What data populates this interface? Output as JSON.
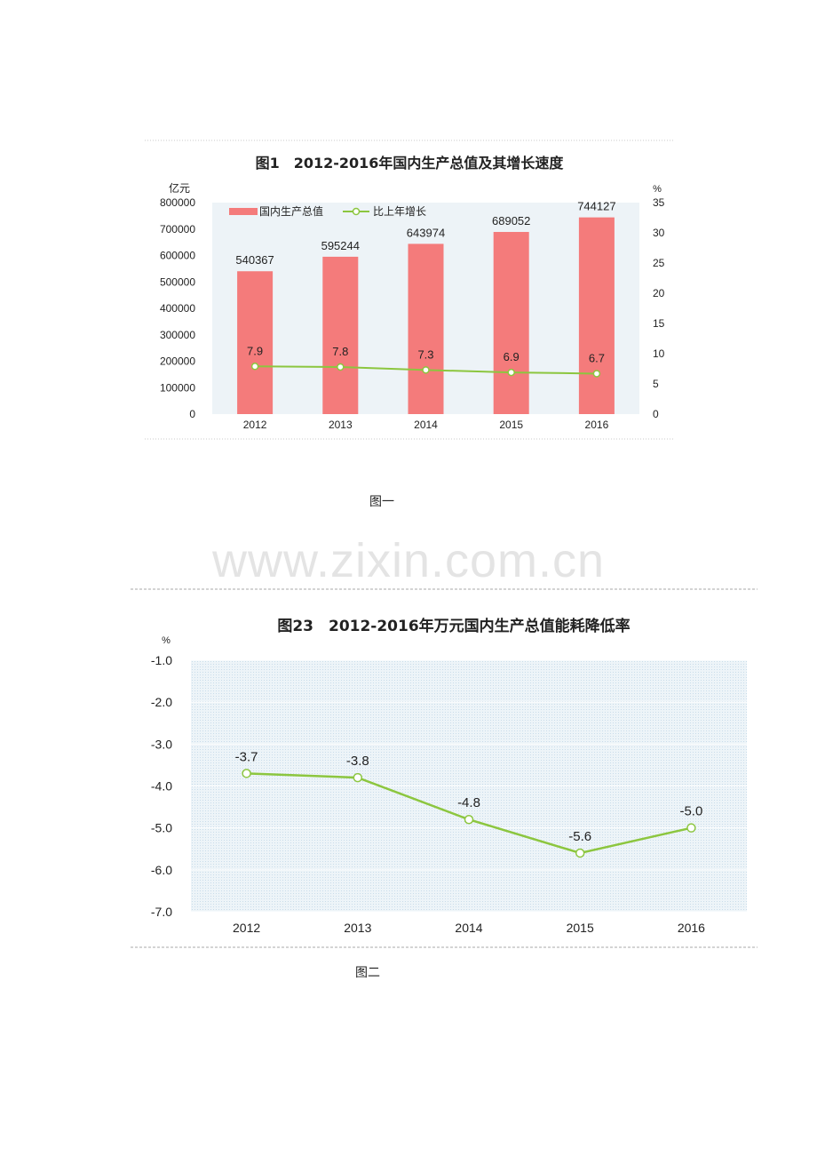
{
  "chart_data": [
    {
      "type": "bar",
      "title": "图1　2012-2016年国内生产总值及其增长速度",
      "ylabel": "亿元",
      "y2label": "%",
      "categories": [
        "2012",
        "2013",
        "2014",
        "2015",
        "2016"
      ],
      "ylim": [
        0,
        800000
      ],
      "yticks": [
        "800000",
        "700000",
        "600000",
        "500000",
        "400000",
        "300000",
        "200000",
        "100000",
        "0"
      ],
      "y2lim": [
        0,
        35
      ],
      "y2ticks": [
        "35",
        "30",
        "25",
        "20",
        "15",
        "10",
        "5",
        "0"
      ],
      "legend_position": "top-left",
      "series": [
        {
          "name": "国内生产总值",
          "type": "bar",
          "axis": "left",
          "color": "#f47b7b",
          "values": [
            540367,
            595244,
            643974,
            689052,
            744127
          ],
          "labels": [
            "540367",
            "595244",
            "643974",
            "689052",
            "744127"
          ]
        },
        {
          "name": "比上年增长",
          "type": "line",
          "axis": "right",
          "color": "#8cc63f",
          "values": [
            7.9,
            7.8,
            7.3,
            6.9,
            6.7
          ],
          "labels": [
            "7.9",
            "7.8",
            "7.3",
            "6.9",
            "6.7"
          ]
        }
      ],
      "plot_background": "#edf3f7"
    },
    {
      "type": "line",
      "title": "图23　2012-2016年万元国内生产总值能耗降低率",
      "ylabel": "%",
      "categories": [
        "2012",
        "2013",
        "2014",
        "2015",
        "2016"
      ],
      "ylim": [
        -7,
        -1
      ],
      "yticks": [
        "-1.0",
        "-2.0",
        "-3.0",
        "-4.0",
        "-5.0",
        "-6.0",
        "-7.0"
      ],
      "series": [
        {
          "type": "line",
          "color": "#8cc63f",
          "values": [
            -3.7,
            -3.8,
            -4.8,
            -5.6,
            -5.0
          ],
          "labels": [
            "-3.7",
            "-3.8",
            "-4.8",
            "-5.6",
            "-5.0"
          ]
        }
      ],
      "plot_background": "#dce9f2"
    }
  ],
  "captions": {
    "fig1": "图一",
    "fig2": "图二"
  },
  "watermark": "www.zixin.com.cn"
}
